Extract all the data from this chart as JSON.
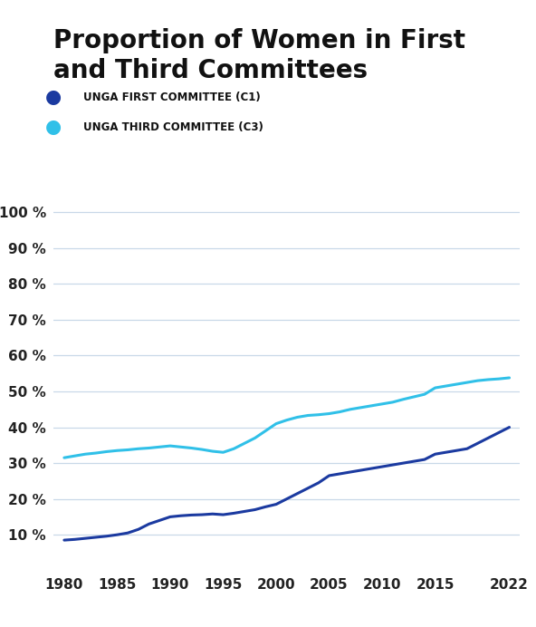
{
  "title_line1": "Proportion of Women in First",
  "title_line2": "and Third Committees",
  "title_fontsize": 20,
  "legend": [
    {
      "label": "UNGA FIRST COMMITTEE (C1)",
      "color": "#1b3aa0"
    },
    {
      "label": "UNGA THIRD COMMITTEE (C3)",
      "color": "#30c0e8"
    }
  ],
  "c1_years": [
    1980,
    1981,
    1982,
    1983,
    1984,
    1985,
    1986,
    1987,
    1988,
    1989,
    1990,
    1991,
    1992,
    1993,
    1994,
    1995,
    1996,
    1997,
    1998,
    1999,
    2000,
    2001,
    2002,
    2003,
    2004,
    2005,
    2006,
    2007,
    2008,
    2009,
    2010,
    2011,
    2012,
    2013,
    2014,
    2015,
    2016,
    2017,
    2018,
    2019,
    2020,
    2021,
    2022
  ],
  "c1_values": [
    8.5,
    8.7,
    9.0,
    9.3,
    9.6,
    10.0,
    10.5,
    11.5,
    13.0,
    14.0,
    15.0,
    15.3,
    15.5,
    15.6,
    15.8,
    15.6,
    16.0,
    16.5,
    17.0,
    17.8,
    18.5,
    20.0,
    21.5,
    23.0,
    24.5,
    26.5,
    27.0,
    27.5,
    28.0,
    28.5,
    29.0,
    29.5,
    30.0,
    30.5,
    31.0,
    32.5,
    33.0,
    33.5,
    34.0,
    35.5,
    37.0,
    38.5,
    40.0
  ],
  "c3_years": [
    1980,
    1981,
    1982,
    1983,
    1984,
    1985,
    1986,
    1987,
    1988,
    1989,
    1990,
    1991,
    1992,
    1993,
    1994,
    1995,
    1996,
    1997,
    1998,
    1999,
    2000,
    2001,
    2002,
    2003,
    2004,
    2005,
    2006,
    2007,
    2008,
    2009,
    2010,
    2011,
    2012,
    2013,
    2014,
    2015,
    2016,
    2017,
    2018,
    2019,
    2020,
    2021,
    2022
  ],
  "c3_values": [
    31.5,
    32.0,
    32.5,
    32.8,
    33.2,
    33.5,
    33.7,
    34.0,
    34.2,
    34.5,
    34.8,
    34.5,
    34.2,
    33.8,
    33.3,
    33.0,
    34.0,
    35.5,
    37.0,
    39.0,
    41.0,
    42.0,
    42.8,
    43.3,
    43.5,
    43.8,
    44.3,
    45.0,
    45.5,
    46.0,
    46.5,
    47.0,
    47.8,
    48.5,
    49.2,
    51.0,
    51.5,
    52.0,
    52.5,
    53.0,
    53.3,
    53.5,
    53.8
  ],
  "yticks": [
    10,
    20,
    30,
    40,
    50,
    60,
    70,
    80,
    90,
    100
  ],
  "ytick_labels": [
    "10 %",
    "20 %",
    "30 %",
    "40 %",
    "50 %",
    "60 %",
    "70 %",
    "80 %",
    "90 %",
    "100 %"
  ],
  "xticks": [
    1980,
    1985,
    1990,
    1995,
    2000,
    2005,
    2010,
    2015,
    2022
  ],
  "ylim": [
    0,
    105
  ],
  "xlim": [
    1979,
    2023
  ],
  "background_color": "#ffffff",
  "grid_color": "#c8d8e8",
  "line_width": 2.2
}
